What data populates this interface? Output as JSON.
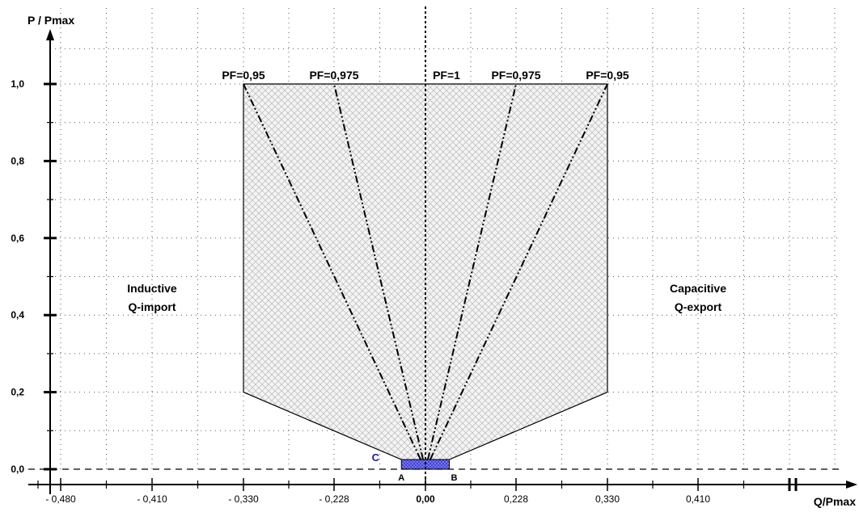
{
  "chart_data": {
    "type": "area",
    "xlabel": "Q/Pmax",
    "ylabel": "P / Pmax",
    "xlim": [
      -0.48,
      0.48
    ],
    "ylim": [
      0,
      1.0
    ],
    "x_ticks": [
      -0.48,
      -0.41,
      -0.33,
      -0.228,
      0,
      0.228,
      0.33,
      0.41,
      0.48
    ],
    "x_tick_labels": [
      "- 0,480",
      "- 0,410",
      "- 0,330",
      "- 0,228",
      "0,00",
      "0,228",
      "0,330",
      "0,410",
      ""
    ],
    "y_ticks": [
      0,
      0.2,
      0.4,
      0.6,
      0.8,
      1.0
    ],
    "y_tick_labels": [
      "0,0",
      "0,2",
      "0,4",
      "0,6",
      "0,8",
      "1,0"
    ],
    "grid": true,
    "operating_region": {
      "name": "",
      "points": [
        [
          -0.33,
          1.0
        ],
        [
          0.33,
          1.0
        ],
        [
          0.33,
          0.2
        ],
        [
          0.06,
          0.025
        ],
        [
          -0.06,
          0.025
        ],
        [
          -0.33,
          0.2
        ]
      ]
    },
    "pf_lines": [
      {
        "label": "PF=0,95",
        "x": [
          -0.012,
          -0.33
        ],
        "y": [
          0.025,
          1.0
        ]
      },
      {
        "label": "PF=0,975",
        "x": [
          -0.006,
          -0.228
        ],
        "y": [
          0.025,
          1.0
        ]
      },
      {
        "label": "PF=1",
        "x": [
          0,
          0
        ],
        "y": [
          0,
          1.0
        ]
      },
      {
        "label": "PF=0,975",
        "x": [
          0.006,
          0.228
        ],
        "y": [
          0.025,
          1.0
        ]
      },
      {
        "label": "PF=0,95",
        "x": [
          0.012,
          0.33
        ],
        "y": [
          0.025,
          1.0
        ]
      }
    ],
    "small_box": {
      "x": [
        -0.06,
        0.06
      ],
      "y": [
        0,
        0.025
      ],
      "color": "#2c2cc8"
    },
    "annotations": {
      "A": "A",
      "B": "B",
      "C": "C",
      "left_region": [
        "Inductive",
        "Q-import"
      ],
      "right_region": [
        "Capacitive",
        "Q-export"
      ]
    }
  }
}
